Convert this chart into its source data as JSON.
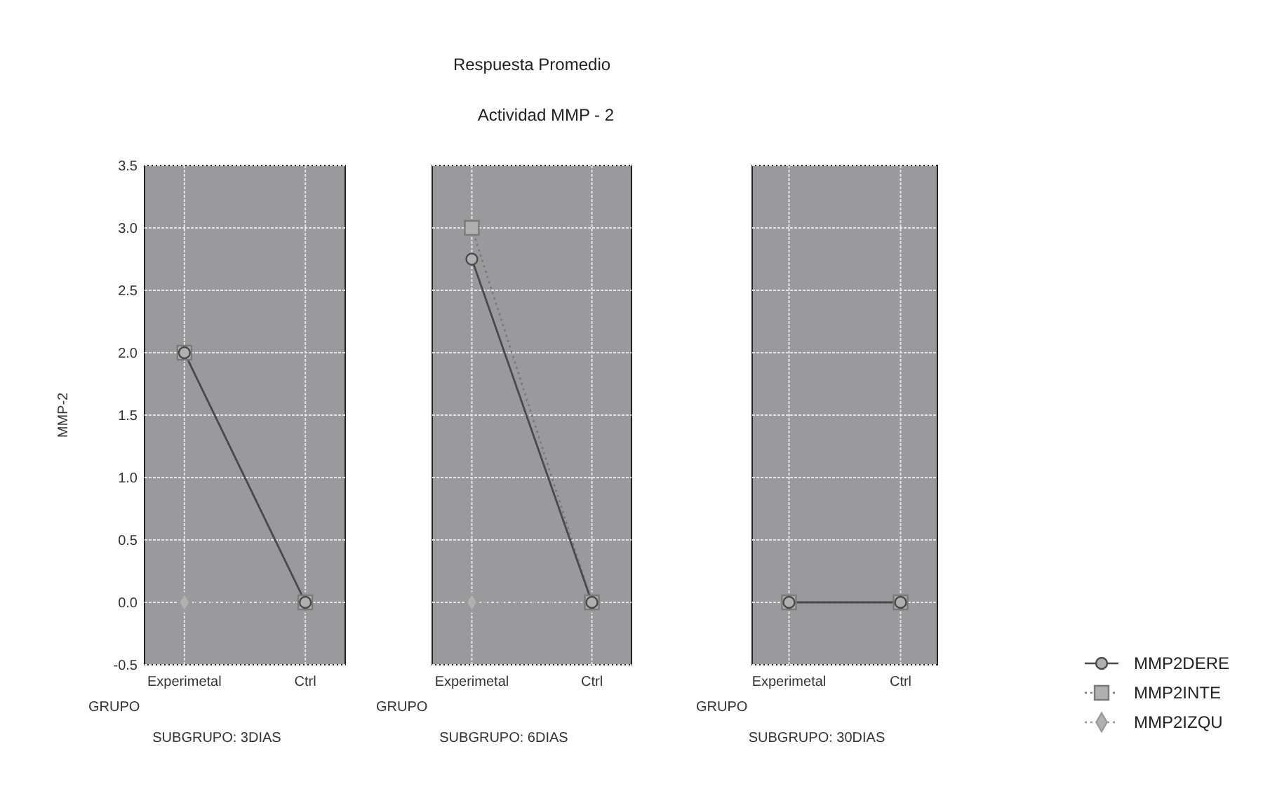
{
  "chart_data": [
    {
      "type": "line",
      "ylabel": "MMP-2",
      "xlabel": "GRUPO",
      "annotations": [
        "SUBGRUPO: 3DIAS"
      ],
      "categories": [
        "Experimetal",
        "Ctrl"
      ],
      "ylim": [
        -0.5,
        3.5
      ],
      "yticks": [
        -0.5,
        {
          "value": 0,
          "label": "0.0"
        },
        0.5,
        {
          "value": 1,
          "label": "1.0"
        },
        1.5,
        {
          "value": 2,
          "label": "2.0"
        },
        2.5,
        {
          "value": 3,
          "label": "3.0"
        },
        3.5
      ],
      "grid": true,
      "series": [
        {
          "color": "#4a4a4a",
          "values": [
            2.0,
            0.0
          ],
          "marker": "circle",
          "line_style": "solid"
        },
        {
          "color": "#7a7a7a",
          "values": [
            2.0,
            0.0
          ],
          "marker": "square",
          "line_style": "dotted"
        },
        {
          "color": "#9a9a9a",
          "values": [
            0.0,
            0.0
          ],
          "marker": "diamond",
          "line_style": "dotted"
        }
      ]
    },
    {
      "type": "line",
      "title": "Respuesta Promedio",
      "subtitle": "Actividad MMP - 2",
      "xlabel": "GRUPO",
      "annotations": [
        "SUBGRUPO: 6DIAS"
      ],
      "categories": [
        "Experimetal",
        "Ctrl"
      ],
      "ylim": [
        -0.5,
        3.5
      ],
      "yticks": [
        -0.5,
        0,
        0.5,
        1,
        1.5,
        2,
        2.5,
        3,
        3.5
      ],
      "grid": true,
      "tick_labels": "x",
      "series": [
        {
          "color": "#4a4a4a",
          "values": [
            2.75,
            0.0
          ],
          "marker": "circle",
          "line_style": "solid"
        },
        {
          "color": "#7a7a7a",
          "values": [
            3.0,
            0.0
          ],
          "marker": "square",
          "line_style": "dotted"
        },
        {
          "color": "#9a9a9a",
          "values": [
            0.0,
            0.0
          ],
          "marker": "diamond",
          "line_style": "dotted"
        }
      ]
    },
    {
      "type": "line",
      "xlabel": "GRUPO",
      "annotations": [
        "SUBGRUPO: 30DIAS"
      ],
      "categories": [
        "Experimetal",
        "Ctrl"
      ],
      "ylim": [
        -0.5,
        3.5
      ],
      "yticks": [
        -0.5,
        0,
        0.5,
        1,
        1.5,
        2,
        2.5,
        3,
        3.5
      ],
      "grid": true,
      "tick_labels": "x",
      "legend": "bottom right",
      "series": [
        {
          "name": "MMP2DERE",
          "color": "#4a4a4a",
          "values": [
            0.0,
            0.0
          ],
          "marker": "circle",
          "line_style": "solid"
        },
        {
          "name": "MMP2INTE",
          "color": "#7a7a7a",
          "values": [
            0.0,
            0.0
          ],
          "marker": "square",
          "line_style": "dotted"
        },
        {
          "name": "MMP2IZQU",
          "color": "#9a9a9a",
          "values": [
            null,
            null
          ],
          "marker": "diamond",
          "line_style": "dotted"
        }
      ]
    }
  ]
}
